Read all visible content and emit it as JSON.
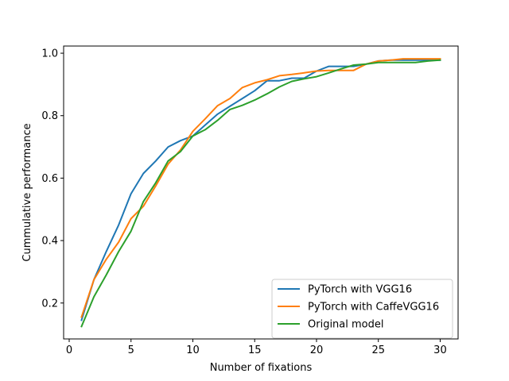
{
  "chart_data": {
    "type": "line",
    "title": "",
    "xlabel": "Number of fixations",
    "ylabel": "Cummulative performance",
    "xlim": [
      -0.45,
      31.45
    ],
    "ylim": [
      0.085,
      1.023
    ],
    "xticks": [
      0,
      5,
      10,
      15,
      20,
      25,
      30
    ],
    "yticks": [
      0.2,
      0.4,
      0.6,
      0.8,
      1.0
    ],
    "ytick_labels": [
      "0.2",
      "0.4",
      "0.6",
      "0.8",
      "1.0"
    ],
    "grid": false,
    "legend_position": "lower-right",
    "x": [
      1,
      2,
      3,
      4,
      5,
      6,
      7,
      8,
      9,
      10,
      11,
      12,
      13,
      14,
      15,
      16,
      17,
      18,
      19,
      20,
      21,
      22,
      23,
      24,
      25,
      26,
      27,
      28,
      29,
      30
    ],
    "series": [
      {
        "name": "PyTorch with VGG16",
        "color": "#1f77b4",
        "values": [
          0.145,
          0.275,
          0.365,
          0.45,
          0.55,
          0.615,
          0.655,
          0.7,
          0.72,
          0.735,
          0.77,
          0.805,
          0.83,
          0.855,
          0.88,
          0.912,
          0.912,
          0.92,
          0.92,
          0.943,
          0.958,
          0.958,
          0.958,
          0.965,
          0.975,
          0.978,
          0.978,
          0.978,
          0.978,
          0.978
        ]
      },
      {
        "name": "PyTorch with CaffeVGG16",
        "color": "#ff7f0e",
        "values": [
          0.155,
          0.275,
          0.34,
          0.395,
          0.47,
          0.51,
          0.575,
          0.645,
          0.69,
          0.75,
          0.79,
          0.832,
          0.855,
          0.89,
          0.905,
          0.915,
          0.928,
          0.932,
          0.937,
          0.943,
          0.945,
          0.945,
          0.945,
          0.965,
          0.975,
          0.978,
          0.982,
          0.982,
          0.982,
          0.982
        ]
      },
      {
        "name": "Original model",
        "color": "#2ca02c",
        "values": [
          0.125,
          0.22,
          0.29,
          0.365,
          0.43,
          0.525,
          0.585,
          0.655,
          0.685,
          0.735,
          0.755,
          0.785,
          0.82,
          0.833,
          0.85,
          0.87,
          0.892,
          0.91,
          0.918,
          0.925,
          0.937,
          0.95,
          0.962,
          0.965,
          0.97,
          0.97,
          0.97,
          0.97,
          0.975,
          0.978
        ]
      }
    ]
  }
}
